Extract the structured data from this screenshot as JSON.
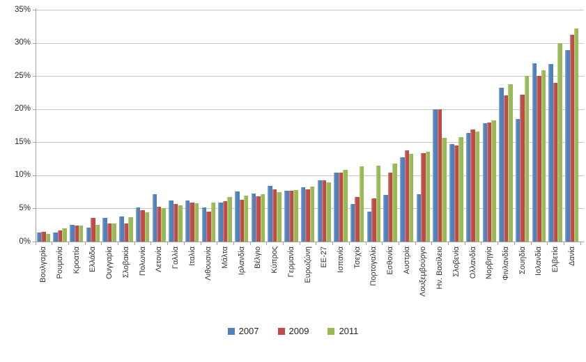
{
  "chart_data": {
    "type": "bar",
    "title": "",
    "xlabel": "",
    "ylabel": "",
    "ylim": [
      0,
      35
    ],
    "ytick_step": 5,
    "ytick_labels": [
      "0%",
      "5%",
      "10%",
      "15%",
      "20%",
      "25%",
      "30%",
      "35%"
    ],
    "grid": true,
    "legend_position": "bottom",
    "categories": [
      "Βουλγαρία",
      "Ρουμανία",
      "Κροατία",
      "Ελλάδα",
      "Ουγγαρία",
      "Σλοβακία",
      "Πολωνία",
      "Λετονία",
      "Γαλλία",
      "Ιταλία",
      "Λιθουανία",
      "Μάλτα",
      "Ιρλανδία",
      "Βέλγιο",
      "Κύπρος",
      "Γερμανία",
      "Ευρωζώνη",
      "ΕΕ-27",
      "Ισπανία",
      "Τσεχία",
      "Πορτογαλία",
      "Εσθονία",
      "Αυστρία",
      "Λουξεμβούργο",
      "Ην. Βασίλειο",
      "Σλοβενία",
      "Ολλανδία",
      "Νορβηγία",
      "Φινλανδία",
      "Σουηδία",
      "Ισλανδία",
      "Ελβετία",
      "Δανία"
    ],
    "series": [
      {
        "name": "2007",
        "color": "#4F81BD",
        "values": [
          1.4,
          1.4,
          2.5,
          2.1,
          3.6,
          3.8,
          5.2,
          7.1,
          6.2,
          6.2,
          5.2,
          5.9,
          7.6,
          7.2,
          8.4,
          7.7,
          8.2,
          9.3,
          10.4,
          5.7,
          4.5,
          7.0,
          12.7,
          7.1,
          20.0,
          14.7,
          16.4,
          17.9,
          23.2,
          18.5,
          26.9,
          26.8,
          28.9
        ]
      },
      {
        "name": "2009",
        "color": "#BE4B48",
        "values": [
          1.5,
          1.7,
          2.4,
          3.6,
          2.7,
          2.7,
          4.7,
          5.3,
          5.7,
          5.9,
          4.5,
          6.1,
          6.3,
          6.8,
          7.9,
          7.7,
          7.9,
          9.3,
          10.4,
          6.7,
          6.5,
          10.4,
          13.8,
          13.4,
          20.0,
          14.5,
          16.9,
          18.0,
          22.1,
          22.2,
          25.0,
          24.0,
          31.2
        ]
      },
      {
        "name": "2011",
        "color": "#98B954",
        "values": [
          1.2,
          2.0,
          2.4,
          2.5,
          2.7,
          3.7,
          4.4,
          5.0,
          5.5,
          5.8,
          5.9,
          6.7,
          6.9,
          7.1,
          7.5,
          7.8,
          8.3,
          8.9,
          10.8,
          11.4,
          11.5,
          11.8,
          13.2,
          13.6,
          15.7,
          15.8,
          16.6,
          18.3,
          23.8,
          25.0,
          25.9,
          30.0,
          32.2
        ]
      }
    ]
  },
  "style_colors": {
    "gridline": "#c6c6c6",
    "axis": "#a3a3a3",
    "text": "#333333",
    "background": "#ffffff"
  }
}
